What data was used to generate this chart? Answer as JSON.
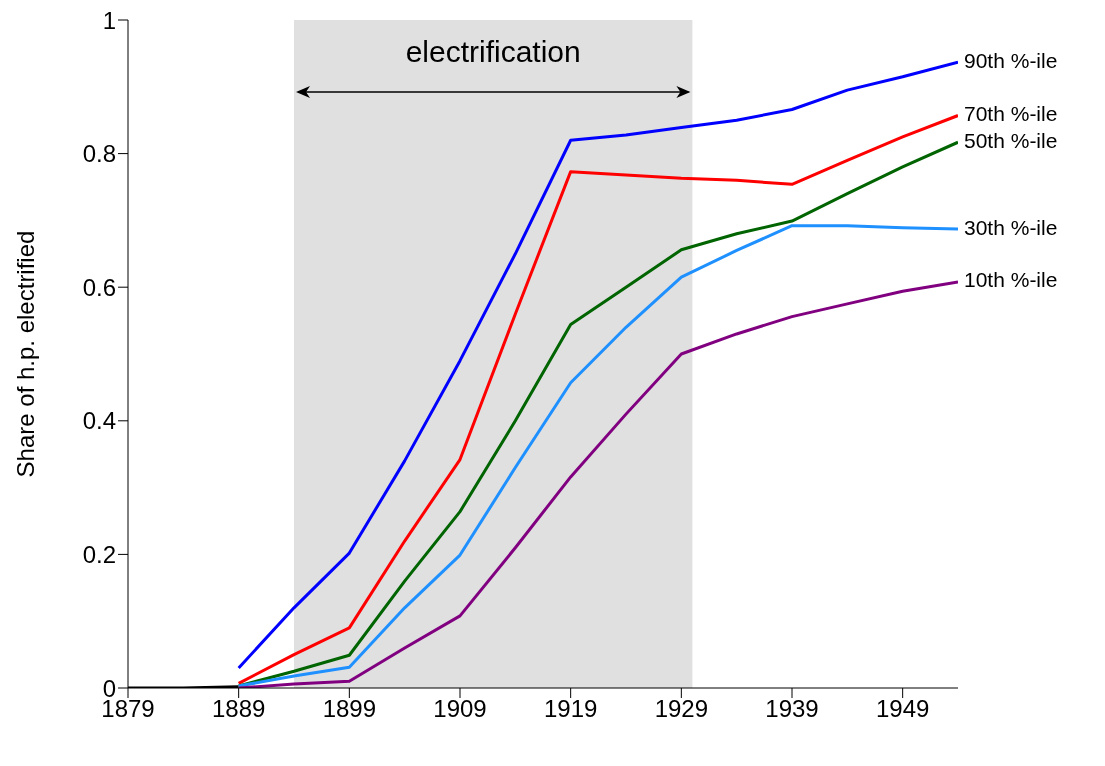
{
  "chart_data": {
    "type": "line",
    "ylabel": "Share of h.p. electrified",
    "xlim": [
      1879,
      1954
    ],
    "xticks": [
      1879,
      1889,
      1899,
      1909,
      1919,
      1929,
      1939,
      1949
    ],
    "ylim": [
      0,
      1
    ],
    "yticks": [
      0,
      0.2,
      0.4,
      0.6,
      0.8,
      1
    ],
    "grid": false,
    "legend": false,
    "marker": "none",
    "line_style": "solid",
    "bands": [
      {
        "axis": "x",
        "from": 1894,
        "to": 1930,
        "label": "electrification",
        "color": "#e0e0e0"
      }
    ],
    "series": [
      {
        "color": "#000000",
        "x": [
          1879,
          1884,
          1889
        ],
        "values": [
          0,
          0,
          0.002
        ]
      },
      {
        "name": "90th %-ile",
        "color": "#0000ff",
        "x": [
          1889,
          1894,
          1899,
          1904,
          1909,
          1914,
          1919,
          1924,
          1929,
          1934,
          1939,
          1944,
          1949,
          1954
        ],
        "values": [
          0.03,
          0.12,
          0.202,
          0.34,
          0.49,
          0.65,
          0.82,
          0.828,
          0.839,
          0.85,
          0.866,
          0.895,
          0.915,
          0.937
        ]
      },
      {
        "name": "70th %-ile",
        "color": "#ff0000",
        "x": [
          1889,
          1894,
          1899,
          1904,
          1909,
          1914,
          1919,
          1924,
          1929,
          1934,
          1939,
          1944,
          1949,
          1954
        ],
        "values": [
          0.007,
          0.05,
          0.09,
          0.22,
          0.342,
          0.56,
          0.773,
          0.768,
          0.763,
          0.76,
          0.754,
          0.79,
          0.825,
          0.857
        ]
      },
      {
        "name": "50th %-ile",
        "color": "#006400",
        "x": [
          1889,
          1894,
          1899,
          1904,
          1909,
          1914,
          1919,
          1924,
          1929,
          1934,
          1939,
          1944,
          1949,
          1954
        ],
        "values": [
          0.003,
          0.025,
          0.049,
          0.16,
          0.264,
          0.4,
          0.544,
          0.6,
          0.656,
          0.68,
          0.699,
          0.74,
          0.78,
          0.817
        ]
      },
      {
        "name": "30th %-ile",
        "color": "#1e90ff",
        "x": [
          1889,
          1894,
          1899,
          1904,
          1909,
          1914,
          1919,
          1924,
          1929,
          1934,
          1939,
          1944,
          1949,
          1954
        ],
        "values": [
          0.003,
          0.018,
          0.031,
          0.12,
          0.199,
          0.33,
          0.457,
          0.54,
          0.615,
          0.655,
          0.692,
          0.692,
          0.689,
          0.687
        ]
      },
      {
        "name": "10th %-ile",
        "color": "#800080",
        "x": [
          1889,
          1894,
          1899,
          1904,
          1909,
          1914,
          1919,
          1924,
          1929,
          1934,
          1939,
          1944,
          1949,
          1954
        ],
        "values": [
          0,
          0.006,
          0.01,
          0.06,
          0.108,
          0.21,
          0.316,
          0.41,
          0.5,
          0.53,
          0.556,
          0.575,
          0.594,
          0.608
        ]
      }
    ]
  }
}
